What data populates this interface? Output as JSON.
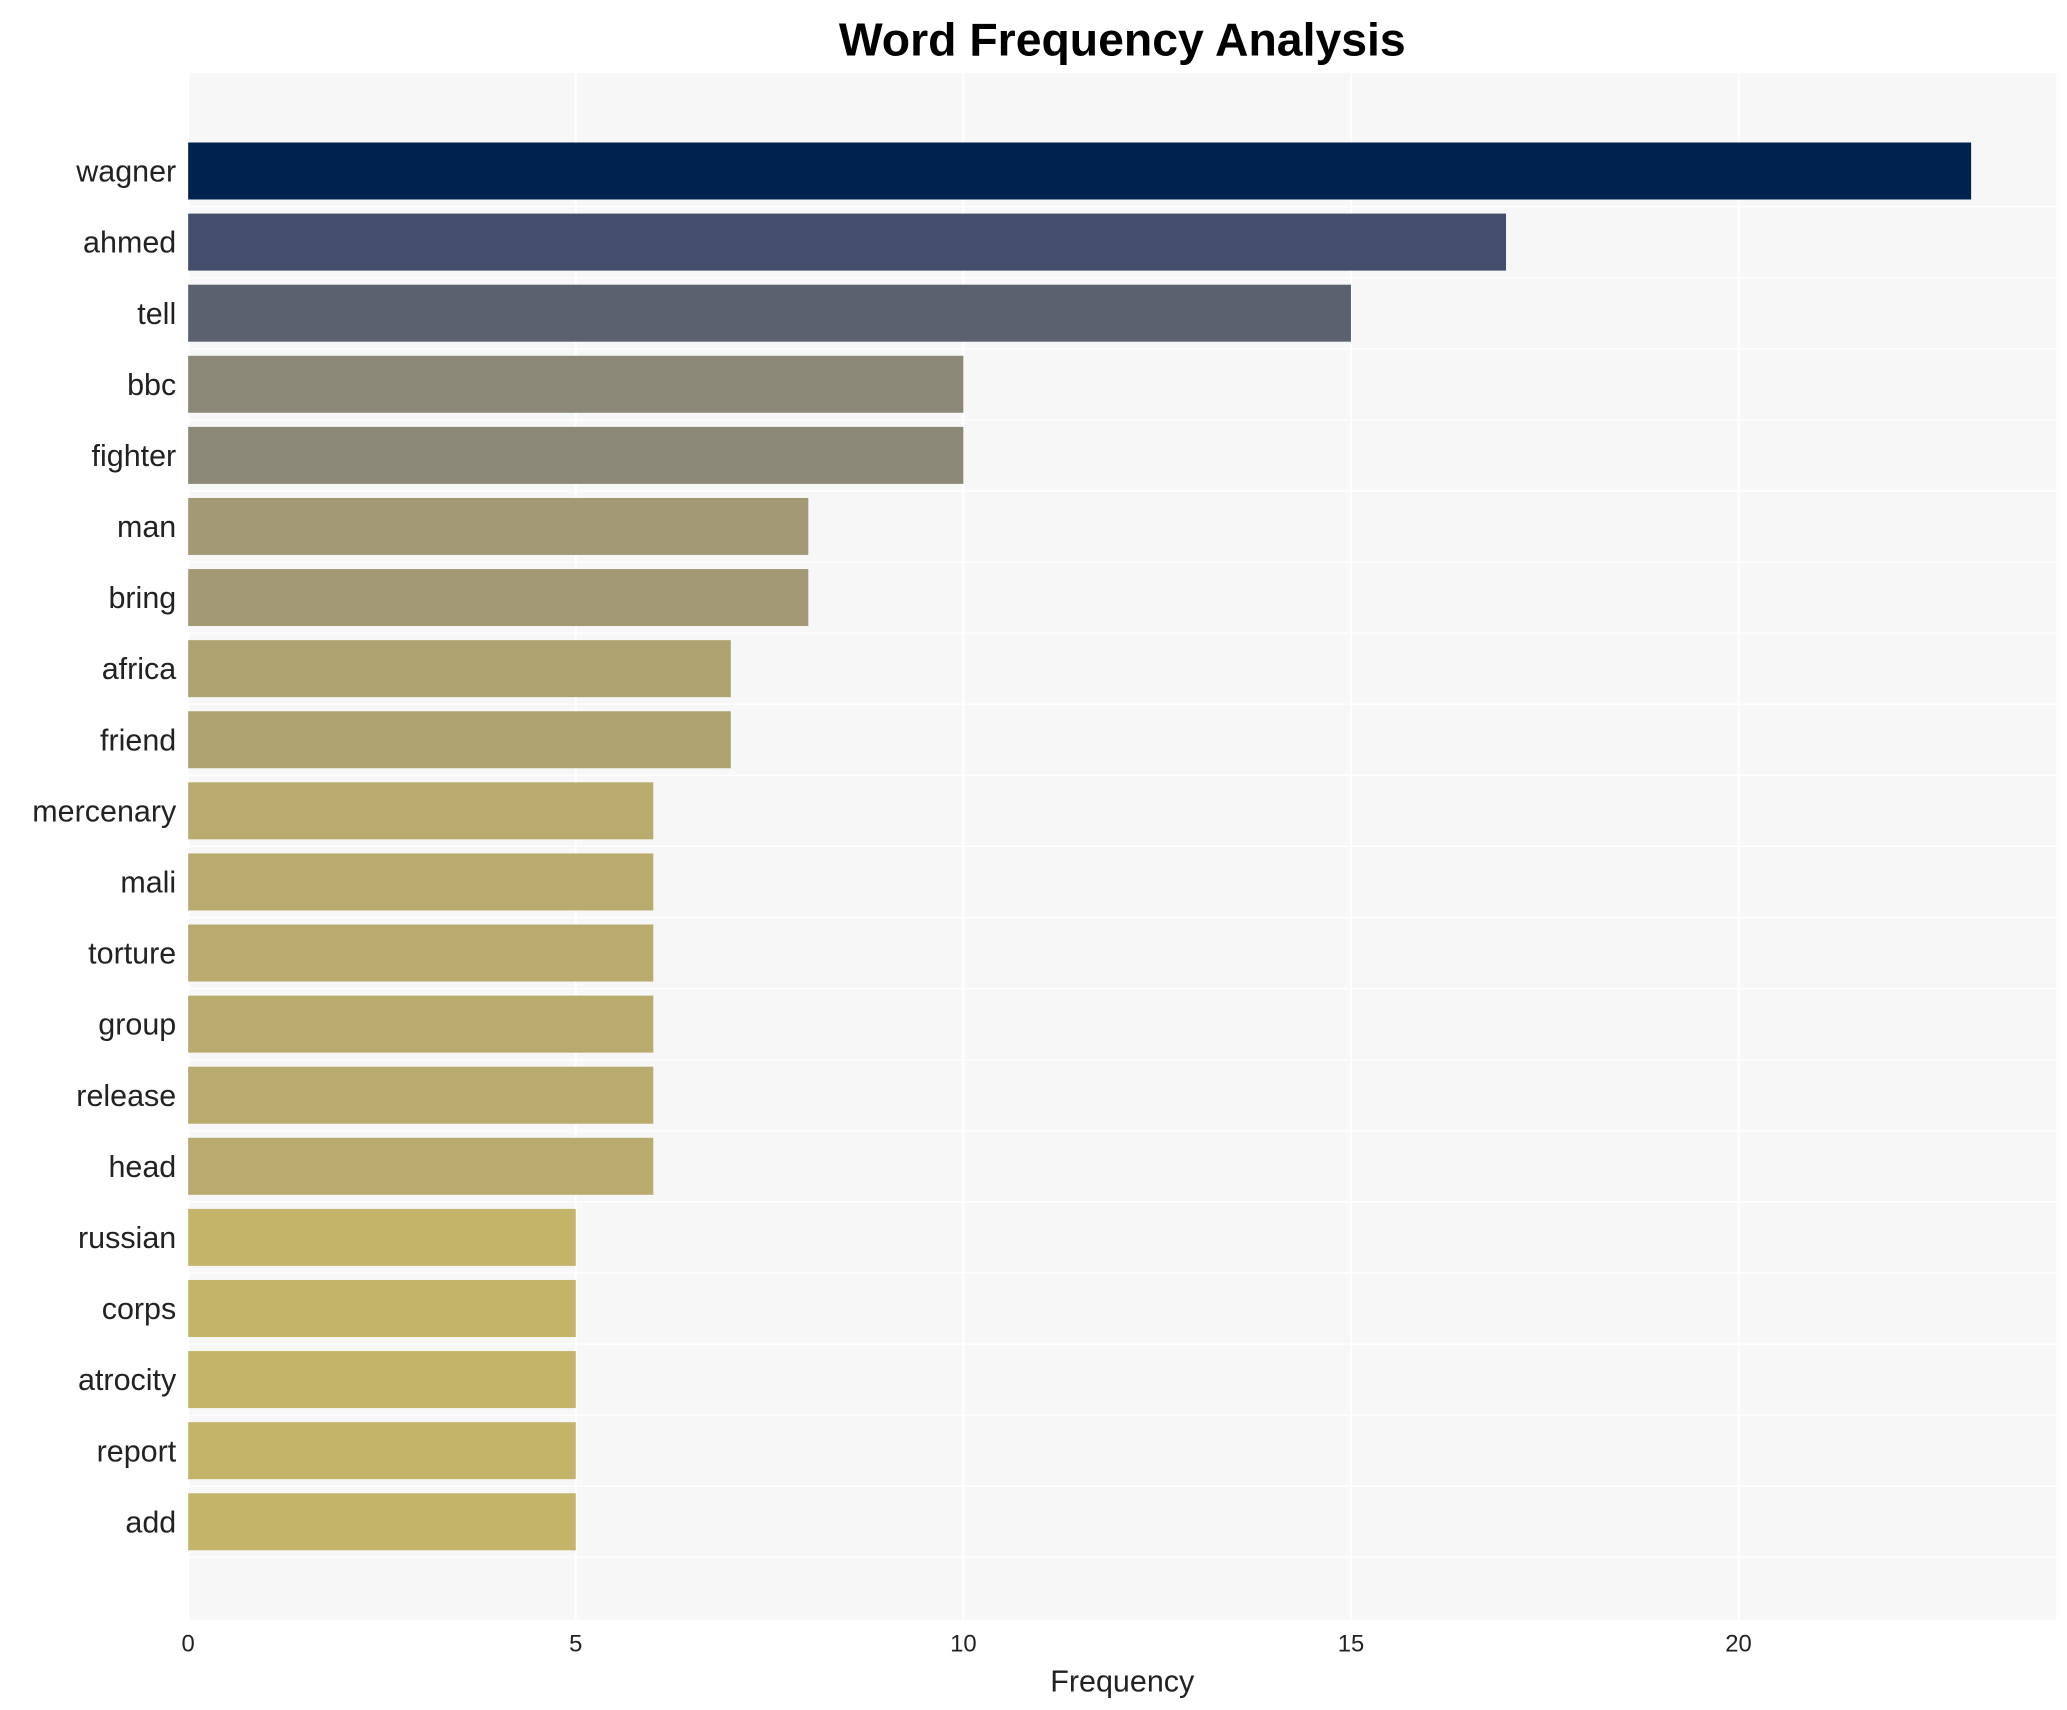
{
  "chart_data": {
    "type": "bar",
    "orientation": "horizontal",
    "title": "Word Frequency Analysis",
    "xlabel": "Frequency",
    "ylabel": "",
    "xlim": [
      0,
      24.1
    ],
    "xticks": [
      0,
      5,
      10,
      15,
      20
    ],
    "grid": true,
    "categories": [
      "wagner",
      "ahmed",
      "tell",
      "bbc",
      "fighter",
      "man",
      "bring",
      "africa",
      "friend",
      "mercenary",
      "mali",
      "torture",
      "group",
      "release",
      "head",
      "russian",
      "corps",
      "atrocity",
      "report",
      "add"
    ],
    "values": [
      23,
      17,
      15,
      10,
      10,
      8,
      8,
      7,
      7,
      6,
      6,
      6,
      6,
      6,
      6,
      5,
      5,
      5,
      5,
      5
    ],
    "colors": [
      "#00224e",
      "#434e6c",
      "#5b616f",
      "#8b8877",
      "#8b8877",
      "#a39a75",
      "#a39a75",
      "#aea370",
      "#aea370",
      "#b9aa6e",
      "#b9aa6e",
      "#b9aa6e",
      "#b9aa6e",
      "#b9aa6e",
      "#b9aa6e",
      "#c4b46a",
      "#c4b46a",
      "#c4b46a",
      "#c4b46a",
      "#c4b46a"
    ],
    "background": "#f7f7f7"
  }
}
